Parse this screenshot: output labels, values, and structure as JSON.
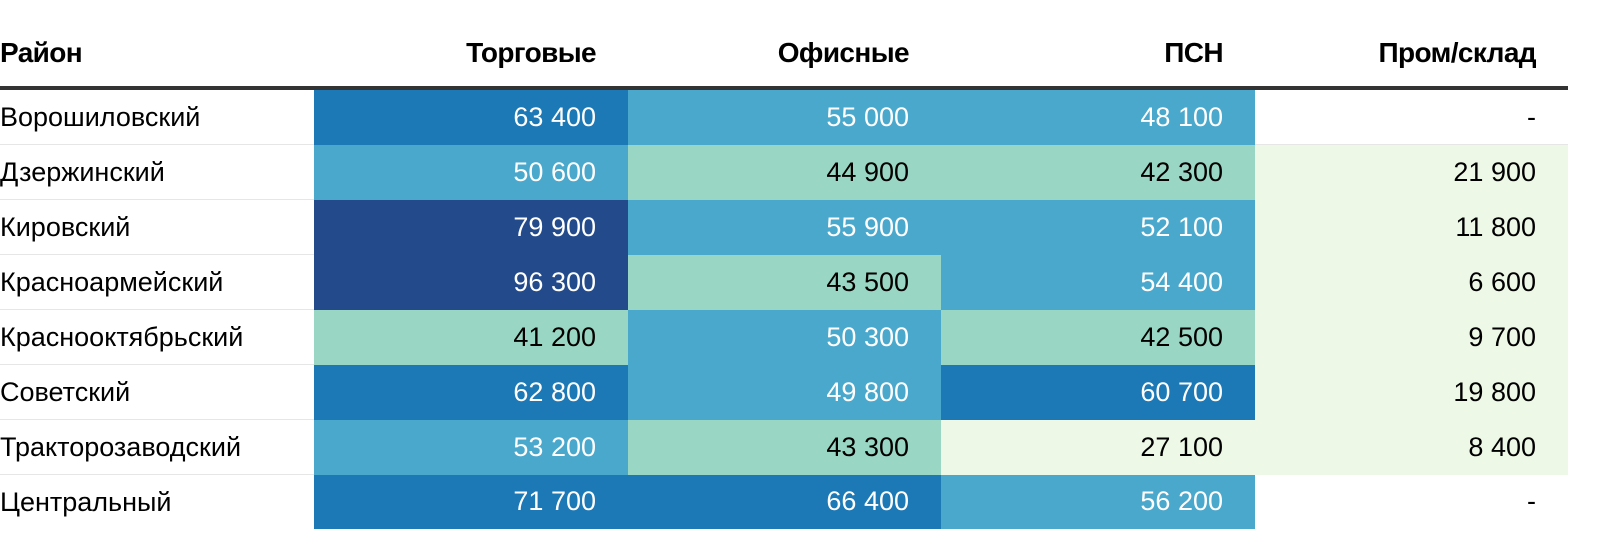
{
  "chart_data": {
    "type": "table",
    "columns": [
      "Район",
      "Торговые",
      "Офисные",
      "ПСН",
      "Пром/склад"
    ],
    "rows": [
      {
        "name": "Ворошиловский",
        "values": [
          "63 400",
          "55 000",
          "48 100",
          "-"
        ]
      },
      {
        "name": "Дзержинский",
        "values": [
          "50 600",
          "44 900",
          "42 300",
          "21 900"
        ]
      },
      {
        "name": "Кировский",
        "values": [
          "79 900",
          "55 900",
          "52 100",
          "11 800"
        ]
      },
      {
        "name": "Красноармейский",
        "values": [
          "96 300",
          "43 500",
          "54 400",
          "6 600"
        ]
      },
      {
        "name": "Краснооктябрьский",
        "values": [
          "41 200",
          "50 300",
          "42 500",
          "9 700"
        ]
      },
      {
        "name": "Советский",
        "values": [
          "62 800",
          "49 800",
          "60 700",
          "19 800"
        ]
      },
      {
        "name": "Тракторозаводский",
        "values": [
          "53 200",
          "43 300",
          "27 100",
          "8 400"
        ]
      },
      {
        "name": "Центральный",
        "values": [
          "71 700",
          "66 400",
          "56 200",
          "-"
        ]
      }
    ],
    "color_scale": [
      {
        "max": 30000,
        "bg": "#eef8e6",
        "fg": "#000000"
      },
      {
        "max": 45000,
        "bg": "#99d6c3",
        "fg": "#000000"
      },
      {
        "max": 60000,
        "bg": "#4aa8cc",
        "fg": "#ffffff"
      },
      {
        "max": 75000,
        "bg": "#1c79b6",
        "fg": "#ffffff"
      },
      {
        "max": 1000000,
        "bg": "#234b8c",
        "fg": "#ffffff"
      }
    ],
    "empty_cell": {
      "bg": "#ffffff",
      "fg": "#000000"
    }
  }
}
